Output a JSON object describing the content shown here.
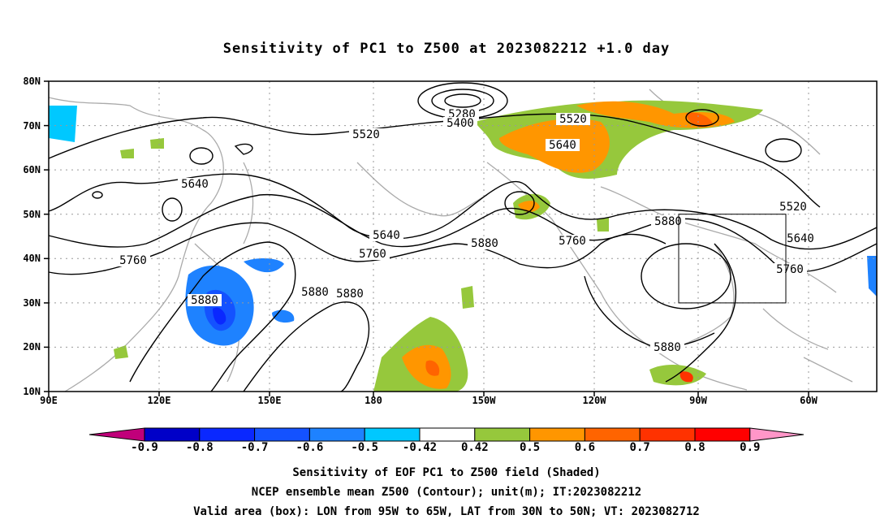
{
  "title": "Sensitivity of PC1 to Z500 at 2023082212 +1.0 day",
  "lat_labels": [
    "80N",
    "70N",
    "60N",
    "50N",
    "40N",
    "30N",
    "20N",
    "10N"
  ],
  "lon_labels": [
    "90E",
    "120E",
    "150E",
    "180",
    "150W",
    "120W",
    "90W",
    "60W"
  ],
  "contour_labels": [
    "5280",
    "5400",
    "5520",
    "5520",
    "5640",
    "5640",
    "5640",
    "5760",
    "5760",
    "5760",
    "5880",
    "5880",
    "5880",
    "5880",
    "5880",
    "5520",
    "5640",
    "5760",
    "5880"
  ],
  "colorbar": {
    "colors": [
      "#c0007a",
      "#0000c8",
      "#0a28ff",
      "#1452ff",
      "#1e82ff",
      "#00c8ff",
      "#ffffff",
      "#96c83c",
      "#ff9600",
      "#ff6400",
      "#ff3200",
      "#ff0000",
      "#ff96c8"
    ],
    "labels": [
      "-0.9",
      "-0.8",
      "-0.7",
      "-0.6",
      "-0.5",
      "-0.42",
      "0.42",
      "0.5",
      "0.6",
      "0.7",
      "0.8",
      "0.9"
    ]
  },
  "footer": {
    "line1": "Sensitivity of EOF PC1 to Z500 field (Shaded)",
    "line2": "NCEP ensemble mean Z500 (Contour); unit(m); IT:2023082212",
    "line3": "Valid area (box): LON from 95W to 65W, LAT from 30N to 50N; VT: 2023082712"
  }
}
